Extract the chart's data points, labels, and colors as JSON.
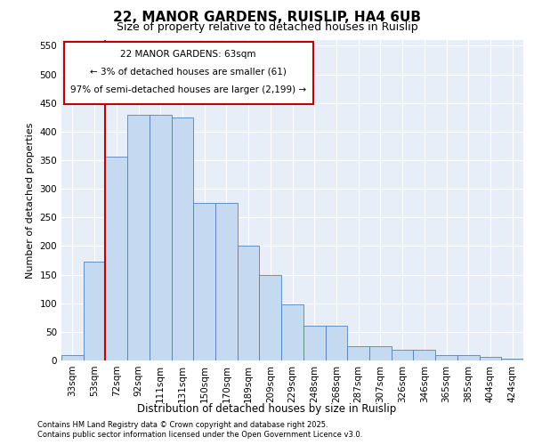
{
  "title_line1": "22, MANOR GARDENS, RUISLIP, HA4 6UB",
  "title_line2": "Size of property relative to detached houses in Ruislip",
  "xlabel": "Distribution of detached houses by size in Ruislip",
  "ylabel": "Number of detached properties",
  "categories": [
    "33sqm",
    "53sqm",
    "72sqm",
    "92sqm",
    "111sqm",
    "131sqm",
    "150sqm",
    "170sqm",
    "189sqm",
    "209sqm",
    "229sqm",
    "248sqm",
    "268sqm",
    "287sqm",
    "307sqm",
    "326sqm",
    "346sqm",
    "365sqm",
    "385sqm",
    "404sqm",
    "424sqm"
  ],
  "bar_values": [
    10,
    172,
    357,
    430,
    430,
    425,
    275,
    275,
    200,
    150,
    98,
    60,
    60,
    25,
    25,
    19,
    19,
    10,
    10,
    6,
    3
  ],
  "bar_color": "#c5d9f1",
  "bar_edge_color": "#4f81bd",
  "vline_x": 1.5,
  "vline_color": "#c00000",
  "annotation_title": "22 MANOR GARDENS: 63sqm",
  "annotation_line2": "← 3% of detached houses are smaller (61)",
  "annotation_line3": "97% of semi-detached houses are larger (2,199) →",
  "annotation_box_color": "#c00000",
  "footer_line1": "Contains HM Land Registry data © Crown copyright and database right 2025.",
  "footer_line2": "Contains public sector information licensed under the Open Government Licence v3.0.",
  "ylim": [
    0,
    560
  ],
  "yticks": [
    0,
    50,
    100,
    150,
    200,
    250,
    300,
    350,
    400,
    450,
    500,
    550
  ],
  "bg_color": "#e8eef8",
  "title_fontsize": 11,
  "subtitle_fontsize": 9,
  "ylabel_fontsize": 8,
  "xlabel_fontsize": 8.5,
  "tick_fontsize": 7.5,
  "footer_fontsize": 6
}
